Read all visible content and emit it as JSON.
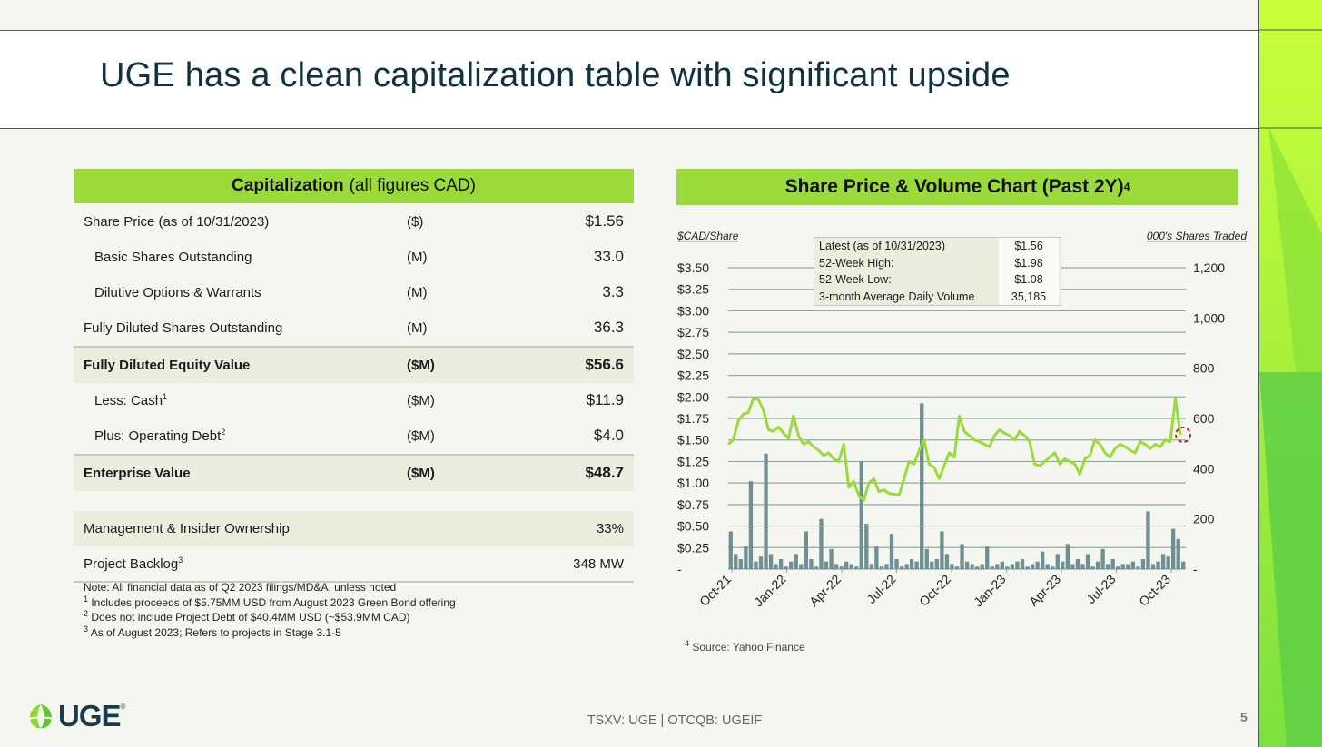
{
  "title": "UGE has a clean capitalization table with significant upside",
  "cap_table": {
    "header_bold": "Capitalization",
    "header_rest": "(all figures CAD)",
    "rows": [
      {
        "label": "Share Price (as of 10/31/2023)",
        "unit": "($)",
        "value": "$1.56"
      },
      {
        "label": "Basic Shares Outstanding",
        "unit": "(M)",
        "value": "33.0"
      },
      {
        "label": "Dilutive Options & Warrants",
        "unit": "(M)",
        "value": "3.3"
      },
      {
        "label": "Fully Diluted Shares Outstanding",
        "unit": "(M)",
        "value": "36.3"
      },
      {
        "label": "Fully Diluted Equity Value",
        "unit": "($M)",
        "value": "$56.6"
      },
      {
        "label": "Less: Cash",
        "sup": "1",
        "unit": "($M)",
        "value": "$11.9"
      },
      {
        "label": "Plus: Operating Debt",
        "sup": "2",
        "unit": "($M)",
        "value": "$4.0"
      },
      {
        "label": "Enterprise Value",
        "unit": "($M)",
        "value": "$48.7"
      },
      {
        "label": "Management & Insider Ownership",
        "unit": "",
        "value": "33%"
      },
      {
        "label": "Project Backlog",
        "sup": "3",
        "unit": "",
        "value": "348 MW"
      }
    ],
    "notes": [
      {
        "sup": "",
        "text": "Note: All financial data as of Q2 2023 filings/MD&A, unless noted"
      },
      {
        "sup": "1",
        "text": " Includes proceeds of $5.75MM USD from August 2023 Green Bond offering"
      },
      {
        "sup": "2",
        "text": " Does not include Project Debt of $40.4MM USD (~$53.9MM CAD)"
      },
      {
        "sup": "3",
        "text": " As of August 2023; Refers to projects in Stage 3.1-5"
      }
    ]
  },
  "chart_header": {
    "text": "Share Price & Volume Chart (Past 2Y)",
    "sup": "4"
  },
  "stats": [
    {
      "label": "Latest (as of 10/31/2023)",
      "value": "$1.56"
    },
    {
      "label": "52-Week High:",
      "value": "$1.98"
    },
    {
      "label": "52-Week Low:",
      "value": "$1.08"
    },
    {
      "label": "3-month Average Daily Volume",
      "value": "35,185"
    }
  ],
  "chart_data": {
    "type": "line",
    "title": "Share Price & Volume Chart (Past 2Y)",
    "left_axis_label": "$CAD/Share",
    "right_axis_label": "000's Shares Traded",
    "left_ticks": [
      "-",
      "$0.25",
      "$0.50",
      "$0.75",
      "$1.00",
      "$1.25",
      "$1.50",
      "$1.75",
      "$2.00",
      "$2.25",
      "$2.50",
      "$2.75",
      "$3.00",
      "$3.25",
      "$3.50"
    ],
    "left_range": [
      0,
      3.5
    ],
    "right_ticks": [
      "-",
      "200",
      "400",
      "600",
      "800",
      "1,000",
      "1,200"
    ],
    "right_range": [
      0,
      1200
    ],
    "x_labels": [
      "Oct-21",
      "Jan-22",
      "Apr-22",
      "Jul-22",
      "Oct-22",
      "Jan-23",
      "Apr-23",
      "Jul-23",
      "Oct-23"
    ],
    "price_series": {
      "name": "Share Price",
      "color": "#9ada3a",
      "values": [
        1.45,
        1.5,
        1.72,
        1.8,
        1.82,
        1.98,
        1.97,
        1.85,
        1.62,
        1.6,
        1.65,
        1.58,
        1.52,
        1.78,
        1.55,
        1.45,
        1.48,
        1.42,
        1.38,
        1.32,
        1.35,
        1.28,
        1.25,
        1.45,
        0.95,
        1.02,
        0.85,
        0.8,
        1.0,
        1.05,
        0.9,
        0.92,
        0.88,
        0.87,
        0.86,
        1.05,
        1.25,
        1.22,
        1.38,
        1.5,
        1.22,
        1.18,
        1.05,
        1.2,
        1.35,
        1.3,
        1.78,
        1.6,
        1.55,
        1.5,
        1.48,
        1.45,
        1.42,
        1.55,
        1.62,
        1.58,
        1.55,
        1.5,
        1.6,
        1.55,
        1.48,
        1.22,
        1.2,
        1.25,
        1.3,
        1.35,
        1.22,
        1.28,
        1.25,
        1.22,
        1.1,
        1.28,
        1.32,
        1.5,
        1.45,
        1.35,
        1.3,
        1.4,
        1.45,
        1.42,
        1.38,
        1.35,
        1.48,
        1.45,
        1.4,
        1.45,
        1.42,
        1.5,
        1.48,
        1.98,
        1.56
      ]
    },
    "volume_series": {
      "name": "Volume",
      "color": "#6f8f93",
      "values": [
        150,
        60,
        40,
        90,
        350,
        30,
        50,
        460,
        60,
        20,
        40,
        10,
        30,
        60,
        20,
        150,
        40,
        10,
        200,
        30,
        80,
        20,
        10,
        30,
        20,
        10,
        430,
        180,
        20,
        90,
        10,
        20,
        140,
        40,
        10,
        20,
        40,
        30,
        660,
        80,
        30,
        40,
        150,
        60,
        20,
        10,
        100,
        30,
        20,
        10,
        20,
        90,
        10,
        20,
        30,
        10,
        20,
        30,
        40,
        10,
        20,
        30,
        70,
        20,
        10,
        60,
        30,
        100,
        20,
        40,
        20,
        60,
        10,
        30,
        80,
        20,
        40,
        10,
        20,
        20,
        30,
        10,
        40,
        230,
        20,
        30,
        60,
        50,
        160,
        120,
        30
      ]
    },
    "highlight_point": {
      "x_label": "Oct-23",
      "price": 1.56,
      "color": "#b22222"
    }
  },
  "source_note": {
    "sup": "4",
    "text": " Source: Yahoo Finance"
  },
  "logo_text": "UGE",
  "logo_reg": "®",
  "footer": "TSXV: UGE | OTCQB: UGEIF",
  "page_number": "5"
}
